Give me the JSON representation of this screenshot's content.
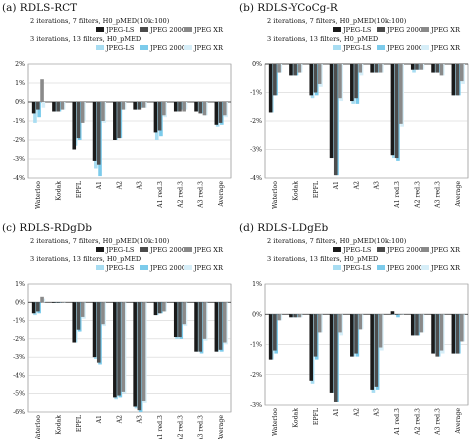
{
  "colors": {
    "jpeg_ls_7": "#1a1a1a",
    "jpeg2000_7": "#4d4d4d",
    "jpegxr_7": "#8a8a8a",
    "jpeg_ls_13": "#a8ddf2",
    "jpeg2000_13": "#7ccbeb",
    "jpegxr_13": "#d6eef8"
  },
  "chart_data": [
    {
      "type": "bar",
      "title": "(a) RDLS-RCT",
      "subtitle_7": "2 iterations, 7 filters, H0_pMED(10k:100)",
      "subtitle_13": "3 iterations, 13 filters, H0_pMED",
      "legend_7": [
        "JPEG-LS",
        "JPEG 2000",
        "JPEG XR"
      ],
      "legend_13": [
        "JPEG-LS",
        "JPEG 2000",
        "JPEG XR"
      ],
      "categories": [
        "Waterloo",
        "Kodak",
        "EPFL",
        "A1",
        "A2",
        "A3",
        "A1 red.3",
        "A2 red.3",
        "A3 red.3",
        "Average"
      ],
      "ylim": [
        -4,
        2
      ],
      "yticks": [
        2,
        1,
        0,
        -1,
        -2,
        -3,
        -4
      ],
      "ytick_labels": [
        "2%",
        "1%",
        "0%",
        "-1%",
        "-2%",
        "-3%",
        "-4%"
      ],
      "series": [
        {
          "name": "JPEG-LS",
          "iterations": 2,
          "filters": 7,
          "values": [
            -0.6,
            -0.5,
            -2.5,
            -3.1,
            -2.0,
            -0.4,
            -1.6,
            -0.5,
            -0.5,
            -1.2
          ]
        },
        {
          "name": "JPEG 2000",
          "iterations": 2,
          "filters": 7,
          "values": [
            -0.4,
            -0.5,
            -1.9,
            -3.3,
            -1.9,
            -0.4,
            -1.5,
            -0.5,
            -0.6,
            -1.1
          ]
        },
        {
          "name": "JPEG XR",
          "iterations": 2,
          "filters": 7,
          "values": [
            1.2,
            -0.4,
            -1.1,
            -1.0,
            -0.4,
            -0.3,
            -0.7,
            -0.5,
            -0.7,
            -0.7
          ]
        },
        {
          "name": "JPEG-LS",
          "iterations": 3,
          "filters": 13,
          "values": [
            -1.1,
            -0.5,
            -2.3,
            -3.5,
            -2.0,
            -0.4,
            -2.0,
            -0.5,
            -0.5,
            -1.3
          ]
        },
        {
          "name": "JPEG 2000",
          "iterations": 3,
          "filters": 13,
          "values": [
            -0.8,
            -0.5,
            -2.0,
            -3.9,
            -1.9,
            -0.3,
            -1.8,
            -0.4,
            -0.6,
            -1.2
          ]
        },
        {
          "name": "JPEG XR",
          "iterations": 3,
          "filters": 13,
          "values": [
            -0.3,
            -0.4,
            -1.0,
            -1.1,
            -0.4,
            -0.3,
            -0.8,
            -0.4,
            -0.7,
            -0.8
          ]
        }
      ]
    },
    {
      "type": "bar",
      "title": "(b) RDLS-YCoCg-R",
      "subtitle_7": "2 iterations, 7 filters, H0_pMED(10k:100)",
      "subtitle_13": "3 iterations, 13 filters, H0_pMED",
      "legend_7": [
        "JPEG-LS",
        "JPEG 2000",
        "JPEG XR"
      ],
      "legend_13": [
        "JPEG-LS",
        "JPEG 2000",
        "JPEG XR"
      ],
      "categories": [
        "Waterloo",
        "Kodak",
        "EPFL",
        "A1",
        "A2",
        "A3",
        "A1 red.3",
        "A2 red.3",
        "A3 red.3",
        "Average"
      ],
      "ylim": [
        -4,
        0
      ],
      "yticks": [
        0,
        -1,
        -2,
        -3,
        -4
      ],
      "ytick_labels": [
        "0%",
        "-1%",
        "-2%",
        "-3%",
        "-4%"
      ],
      "series": [
        {
          "name": "JPEG-LS",
          "iterations": 2,
          "filters": 7,
          "values": [
            -1.7,
            -0.4,
            -1.1,
            -3.3,
            -1.3,
            -0.3,
            -3.2,
            -0.2,
            -0.3,
            -1.1
          ]
        },
        {
          "name": "JPEG 2000",
          "iterations": 2,
          "filters": 7,
          "values": [
            -1.1,
            -0.4,
            -1.0,
            -3.9,
            -1.2,
            -0.3,
            -3.3,
            -0.2,
            -0.3,
            -1.1
          ]
        },
        {
          "name": "JPEG XR",
          "iterations": 2,
          "filters": 7,
          "values": [
            -0.3,
            -0.3,
            -0.7,
            -1.2,
            -0.3,
            -0.3,
            -2.1,
            -0.2,
            -0.4,
            -0.6
          ]
        },
        {
          "name": "JPEG-LS",
          "iterations": 3,
          "filters": 13,
          "values": [
            -1.7,
            -0.4,
            -1.2,
            -3.3,
            -1.4,
            -0.3,
            -3.3,
            -0.3,
            -0.3,
            -1.1
          ]
        },
        {
          "name": "JPEG 2000",
          "iterations": 3,
          "filters": 13,
          "values": [
            -1.1,
            -0.4,
            -1.1,
            -3.9,
            -1.4,
            -0.3,
            -3.4,
            -0.2,
            -0.3,
            -1.1
          ]
        },
        {
          "name": "JPEG XR",
          "iterations": 3,
          "filters": 13,
          "values": [
            -0.3,
            -0.3,
            -0.8,
            -1.3,
            -0.4,
            -0.3,
            -2.2,
            -0.2,
            -0.4,
            -0.7
          ]
        }
      ]
    },
    {
      "type": "bar",
      "title": "(c) RDLS-RDgDb",
      "subtitle_7": "2 iterations, 7 filters, H0_pMED(10k:100)",
      "subtitle_13": "3 iterations, 13 filters, H0_pMED",
      "legend_7": [
        "JPEG-LS",
        "JPEG 2000",
        "JPEG XR"
      ],
      "legend_13": [
        "JPEG-LS",
        "JPEG 2000",
        "JPEG XR"
      ],
      "categories": [
        "Waterloo",
        "Kodak",
        "EPFL",
        "A1",
        "A2",
        "A3",
        "A1 red.3",
        "A2 red.3",
        "A3 red.3",
        "Average"
      ],
      "ylim": [
        -6,
        1
      ],
      "yticks": [
        1,
        0,
        -1,
        -2,
        -3,
        -4,
        -5,
        -6
      ],
      "ytick_labels": [
        "1%",
        "0%",
        "-1%",
        "-2%",
        "-3%",
        "-4%",
        "-5%",
        "-6%"
      ],
      "series": [
        {
          "name": "JPEG-LS",
          "iterations": 2,
          "filters": 7,
          "values": [
            -0.6,
            0.0,
            -2.2,
            -3.0,
            -5.2,
            -5.7,
            -0.7,
            -1.9,
            -2.7,
            -2.7
          ]
        },
        {
          "name": "JPEG 2000",
          "iterations": 2,
          "filters": 7,
          "values": [
            -0.5,
            0.0,
            -1.5,
            -3.3,
            -5.1,
            -5.9,
            -0.6,
            -1.9,
            -2.7,
            -2.6
          ]
        },
        {
          "name": "JPEG XR",
          "iterations": 2,
          "filters": 7,
          "values": [
            0.3,
            0.0,
            -0.8,
            -1.2,
            -4.9,
            -5.4,
            -0.5,
            -1.2,
            -2.0,
            -2.2
          ]
        },
        {
          "name": "JPEG-LS",
          "iterations": 3,
          "filters": 13,
          "values": [
            -0.7,
            0.0,
            -2.2,
            -3.1,
            -5.3,
            -5.8,
            -0.7,
            -2.0,
            -2.7,
            -2.7
          ]
        },
        {
          "name": "JPEG 2000",
          "iterations": 3,
          "filters": 13,
          "values": [
            -0.6,
            0.0,
            -1.6,
            -3.4,
            -5.2,
            -6.0,
            -0.6,
            -2.0,
            -2.8,
            -2.7
          ]
        },
        {
          "name": "JPEG XR",
          "iterations": 3,
          "filters": 13,
          "values": [
            0.2,
            0.0,
            -0.9,
            -1.3,
            -5.0,
            -5.5,
            -0.5,
            -1.3,
            -2.1,
            -2.3
          ]
        }
      ]
    },
    {
      "type": "bar",
      "title": "(d) RDLS-LDgEb",
      "subtitle_7": "2 iterations, 7 filters, H0_pMED(10k:100)",
      "subtitle_13": "3 iterations, 13 filters, H0_pMED",
      "legend_7": [
        "JPEG-LS",
        "JPEG 2000",
        "JPEG XR"
      ],
      "legend_13": [
        "JPEG-LS",
        "JPEG 2000",
        "JPEG XR"
      ],
      "categories": [
        "Waterloo",
        "Kodak",
        "EPFL",
        "A1",
        "A2",
        "A3",
        "A1 red.3",
        "A2 red.3",
        "A3 red.3",
        "Average"
      ],
      "ylim": [
        -3,
        1
      ],
      "yticks": [
        1,
        0,
        -1,
        -2,
        -3
      ],
      "ytick_labels": [
        "1%",
        "0%",
        "-1%",
        "-2%",
        "-3%"
      ],
      "series": [
        {
          "name": "JPEG-LS",
          "iterations": 2,
          "filters": 7,
          "values": [
            -1.5,
            -0.1,
            -2.2,
            -2.6,
            -1.4,
            -2.5,
            0.1,
            -0.7,
            -1.3,
            -1.3
          ]
        },
        {
          "name": "JPEG 2000",
          "iterations": 2,
          "filters": 7,
          "values": [
            -1.2,
            -0.1,
            -1.4,
            -2.9,
            -1.3,
            -2.4,
            0.0,
            -0.7,
            -1.4,
            -1.3
          ]
        },
        {
          "name": "JPEG XR",
          "iterations": 2,
          "filters": 7,
          "values": [
            -0.2,
            -0.1,
            -0.6,
            -0.6,
            -0.5,
            -1.1,
            0.0,
            -0.6,
            -1.2,
            -0.9
          ]
        },
        {
          "name": "JPEG-LS",
          "iterations": 3,
          "filters": 13,
          "values": [
            -1.5,
            -0.1,
            -2.3,
            -2.6,
            -1.4,
            -2.6,
            0.0,
            -0.7,
            -1.3,
            -1.3
          ]
        },
        {
          "name": "JPEG 2000",
          "iterations": 3,
          "filters": 13,
          "values": [
            -1.3,
            -0.1,
            -1.5,
            -2.9,
            -1.4,
            -2.5,
            -0.1,
            -0.7,
            -1.4,
            -1.3
          ]
        },
        {
          "name": "JPEG XR",
          "iterations": 3,
          "filters": 13,
          "values": [
            -0.2,
            -0.1,
            -0.6,
            -0.7,
            -0.5,
            -1.2,
            0.0,
            -0.6,
            -1.3,
            -0.9
          ]
        }
      ]
    }
  ]
}
